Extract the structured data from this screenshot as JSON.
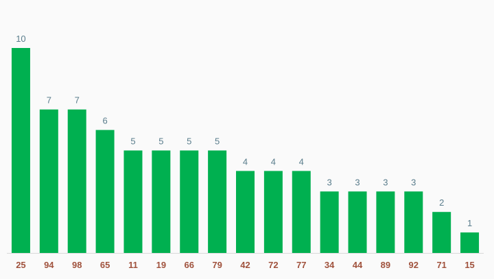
{
  "chart_data": {
    "type": "bar",
    "categories": [
      "25",
      "94",
      "98",
      "65",
      "11",
      "19",
      "66",
      "79",
      "42",
      "72",
      "77",
      "34",
      "44",
      "89",
      "92",
      "71",
      "15"
    ],
    "values": [
      10,
      7,
      7,
      6,
      5,
      5,
      5,
      5,
      4,
      4,
      4,
      3,
      3,
      3,
      3,
      2,
      1
    ],
    "title": "",
    "xlabel": "",
    "ylabel": "",
    "ylim": [
      0,
      10
    ],
    "grid": false,
    "legend": "none",
    "data_labels": true
  },
  "colors": {
    "bar": "#00b050",
    "value_label": "#5a7d8c",
    "tick_label": "#a0523d",
    "axis_line": "#d9d9d9",
    "background": "#fafafa"
  }
}
